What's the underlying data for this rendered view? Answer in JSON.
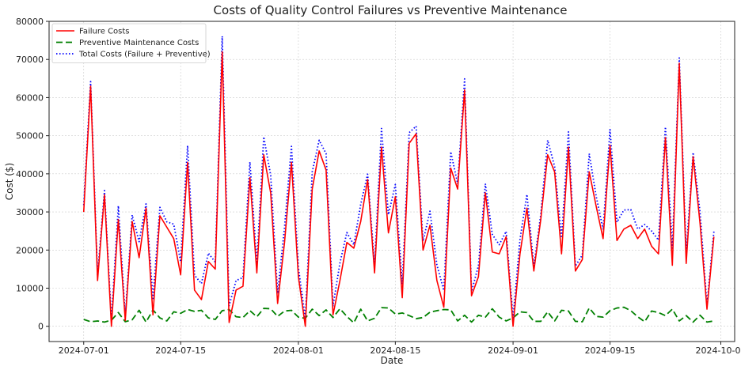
{
  "chart_data": {
    "type": "line",
    "title": "Costs of Quality Control Failures vs Preventive Maintenance",
    "xlabel": "Date",
    "ylabel": "Cost ($)",
    "start_date": "2024-07-01",
    "xlim": [
      "2024-06-26",
      "2024-10-03"
    ],
    "ylim": [
      -4000,
      80000
    ],
    "x_ticks": [
      "2024-07-01",
      "2024-07-15",
      "2024-08-01",
      "2024-08-15",
      "2024-09-01",
      "2024-09-15",
      "2024-10-01"
    ],
    "y_ticks": [
      0,
      10000,
      20000,
      30000,
      40000,
      50000,
      60000,
      70000,
      80000
    ],
    "grid": true,
    "legend_position": "top-left",
    "series": [
      {
        "name": "Failure Costs",
        "color": "#ff0000",
        "style": "solid",
        "values": [
          30000,
          63000,
          12000,
          34500,
          0,
          28000,
          1500,
          27500,
          18000,
          31000,
          3000,
          29000,
          26000,
          23000,
          13500,
          43000,
          9500,
          7000,
          17000,
          15000,
          72000,
          1000,
          9500,
          10500,
          39000,
          14000,
          45000,
          35000,
          6000,
          22000,
          43000,
          13000,
          0,
          36000,
          46000,
          41000,
          3000,
          12000,
          22000,
          20500,
          27500,
          38500,
          14000,
          47000,
          24500,
          34000,
          7500,
          48000,
          50500,
          20000,
          26500,
          12000,
          5000,
          41500,
          36000,
          62000,
          8000,
          13000,
          35000,
          19500,
          19000,
          23500,
          0,
          19000,
          31000,
          14500,
          28000,
          45000,
          40500,
          19000,
          47000,
          14500,
          17500,
          40500,
          31500,
          23000,
          47500,
          22500,
          25500,
          26500,
          23000,
          25500,
          21000,
          19000,
          49500,
          16000,
          69000,
          16500,
          44500,
          27000,
          4500,
          23500
        ]
      },
      {
        "name": "Preventive Maintenance Costs",
        "color": "#008000",
        "style": "dashed",
        "values": [
          1800,
          1200,
          1400,
          1100,
          1600,
          3600,
          1200,
          1700,
          4200,
          1100,
          4300,
          2200,
          1400,
          3800,
          3400,
          4400,
          3900,
          4200,
          2200,
          1800,
          4100,
          4400,
          2500,
          2300,
          4100,
          2500,
          4700,
          4600,
          2600,
          4000,
          4200,
          2400,
          2100,
          4500,
          2800,
          4300,
          2300,
          4600,
          2600,
          900,
          4500,
          1400,
          2100,
          4900,
          4800,
          3200,
          3500,
          2800,
          2000,
          2300,
          3700,
          4100,
          4400,
          4300,
          1400,
          2900,
          1100,
          2900,
          2400,
          4600,
          2400,
          1400,
          2200,
          3800,
          3600,
          1300,
          1300,
          3800,
          1400,
          4200,
          4000,
          1300,
          1200,
          4800,
          2600,
          2400,
          4100,
          4800,
          5000,
          4100,
          2500,
          1200,
          4000,
          3600,
          2800,
          4500,
          1400,
          2800,
          1100,
          2900,
          1100,
          1400
        ]
      },
      {
        "name": "Total Costs (Failure + Preventive)",
        "color": "#0000ff",
        "style": "dotted",
        "values": [
          31800,
          64200,
          13400,
          35600,
          1600,
          31600,
          2700,
          29200,
          22200,
          32100,
          7300,
          31200,
          27400,
          26800,
          16900,
          47400,
          13400,
          11200,
          19200,
          16800,
          76100,
          5400,
          12000,
          12800,
          43100,
          16500,
          49700,
          39600,
          8600,
          26000,
          47200,
          15400,
          2100,
          40500,
          48800,
          45300,
          5300,
          16600,
          24600,
          21400,
          32000,
          39900,
          16100,
          51900,
          29300,
          37200,
          11000,
          50800,
          52500,
          22300,
          30200,
          16100,
          9400,
          45800,
          37400,
          64900,
          9100,
          15900,
          37400,
          24100,
          21400,
          24900,
          2200,
          22800,
          34600,
          15800,
          29300,
          48800,
          41900,
          23200,
          51000,
          15800,
          18700,
          45300,
          34100,
          25400,
          51600,
          27300,
          30500,
          30600,
          25500,
          26700,
          25000,
          22600,
          52300,
          20500,
          70400,
          19300,
          45600,
          29900,
          5600,
          24900
        ]
      }
    ]
  }
}
